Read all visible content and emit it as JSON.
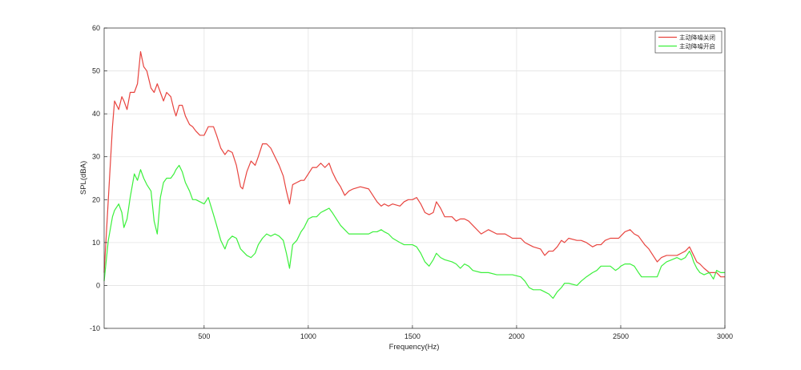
{
  "chart_data": {
    "type": "line",
    "xlabel": "Frequency(Hz)",
    "ylabel": "SPL(dBA)",
    "xlim": [
      20,
      3000
    ],
    "ylim": [
      -10,
      60
    ],
    "xticks": [
      500,
      1000,
      1500,
      2000,
      2500,
      3000
    ],
    "yticks": [
      -10,
      0,
      10,
      20,
      30,
      40,
      50,
      60
    ],
    "grid": true,
    "legend": {
      "placement": "top-right"
    },
    "x": [
      20,
      40,
      60,
      70,
      90,
      105,
      115,
      130,
      145,
      165,
      180,
      195,
      210,
      225,
      245,
      260,
      275,
      290,
      305,
      320,
      340,
      355,
      365,
      380,
      395,
      410,
      430,
      445,
      460,
      480,
      500,
      520,
      545,
      560,
      580,
      600,
      615,
      635,
      655,
      675,
      685,
      705,
      725,
      745,
      760,
      780,
      800,
      820,
      840,
      860,
      880,
      895,
      910,
      925,
      945,
      965,
      980,
      1000,
      1020,
      1040,
      1060,
      1080,
      1100,
      1115,
      1135,
      1155,
      1175,
      1195,
      1215,
      1250,
      1290,
      1310,
      1330,
      1350,
      1365,
      1385,
      1405,
      1440,
      1460,
      1480,
      1500,
      1520,
      1540,
      1560,
      1580,
      1600,
      1615,
      1635,
      1655,
      1690,
      1710,
      1730,
      1750,
      1770,
      1790,
      1830,
      1865,
      1905,
      1945,
      1980,
      2020,
      2040,
      2060,
      2080,
      2115,
      2135,
      2155,
      2175,
      2195,
      2215,
      2230,
      2250,
      2290,
      2310,
      2335,
      2365,
      2385,
      2405,
      2425,
      2450,
      2475,
      2490,
      2500,
      2520,
      2545,
      2565,
      2585,
      2600,
      2615,
      2635,
      2655,
      2675,
      2695,
      2720,
      2745,
      2770,
      2790,
      2810,
      2830,
      2840,
      2850,
      2865,
      2880,
      2900,
      2925,
      2945,
      2960,
      2980,
      3000
    ],
    "series": [
      {
        "name": "主动降噪关闭",
        "color": "#e8443f",
        "values": [
          3,
          20,
          37,
          43,
          41,
          44,
          43,
          41,
          45,
          45,
          47,
          54.5,
          51,
          50,
          46,
          45,
          47,
          45,
          43,
          45,
          44,
          41,
          39.5,
          42,
          42,
          39.5,
          37.5,
          37,
          36,
          35,
          35,
          37,
          37,
          35,
          32,
          30.5,
          31.5,
          31,
          28,
          23,
          22.5,
          26.5,
          29,
          28,
          30,
          33,
          33,
          32,
          30,
          28,
          25.5,
          22,
          19,
          23.5,
          24,
          24.5,
          24.5,
          26,
          27.5,
          27.5,
          28.5,
          27.5,
          28.5,
          26.5,
          24.5,
          23,
          21,
          22,
          22.5,
          23,
          22.5,
          21,
          19.5,
          18.5,
          19,
          18.5,
          19,
          18.5,
          19.5,
          20,
          20,
          20.5,
          19,
          17,
          16.5,
          17,
          19.5,
          18,
          16,
          16,
          15,
          15.5,
          15.5,
          15,
          14,
          12,
          13,
          12,
          12,
          11,
          11,
          10,
          9.5,
          9,
          8.5,
          7,
          8,
          8,
          9,
          10.5,
          10,
          11,
          10.5,
          10.5,
          10,
          9,
          9.5,
          9.5,
          10.5,
          11,
          11,
          11,
          11.5,
          12.5,
          13,
          12,
          11.5,
          10.5,
          9.5,
          8.5,
          7,
          5.5,
          6.5,
          7,
          7,
          7,
          7.5,
          8,
          9,
          8,
          7,
          5.5,
          5,
          4,
          3,
          3,
          3,
          2,
          2
        ]
      },
      {
        "name": "主动降噪开启",
        "color": "#3cf03c",
        "values": [
          1,
          10.5,
          16,
          17.5,
          19,
          17,
          13.5,
          15.5,
          20.5,
          26,
          24.5,
          27,
          25,
          23.5,
          22,
          15,
          12,
          20.5,
          24,
          25,
          25,
          26,
          27,
          28,
          26.5,
          24,
          22,
          20,
          20,
          19.5,
          19,
          20.5,
          16.5,
          14,
          10.5,
          8.5,
          10.5,
          11.5,
          11,
          8.5,
          8,
          7,
          6.5,
          7.5,
          9.5,
          11,
          12,
          11.5,
          12,
          11.5,
          10.5,
          7.5,
          4,
          9.5,
          10.5,
          12.5,
          13.5,
          15.5,
          16,
          16,
          17,
          17.5,
          18,
          17,
          15.5,
          14,
          13,
          12,
          12,
          12,
          12,
          12.5,
          12.5,
          13,
          12.5,
          12,
          11,
          10,
          9.5,
          9.5,
          9.5,
          9,
          7.5,
          5.5,
          4.5,
          6,
          7.5,
          6.5,
          6,
          5.5,
          5,
          4,
          5,
          4.5,
          3.5,
          3,
          3,
          2.5,
          2.5,
          2.5,
          2,
          1,
          -0.5,
          -1,
          -1,
          -1.5,
          -2,
          -3,
          -1.5,
          -0.5,
          0.5,
          0.5,
          0,
          1,
          2,
          3,
          3.5,
          4.5,
          4.5,
          4.5,
          3.5,
          4,
          4.5,
          5,
          5,
          4.5,
          3,
          2,
          2,
          2,
          2,
          2,
          4.5,
          5.5,
          6,
          6.5,
          6,
          6.5,
          8,
          7,
          5.5,
          4,
          3,
          2.5,
          3,
          1.5,
          3.5,
          3,
          3
        ]
      }
    ]
  }
}
